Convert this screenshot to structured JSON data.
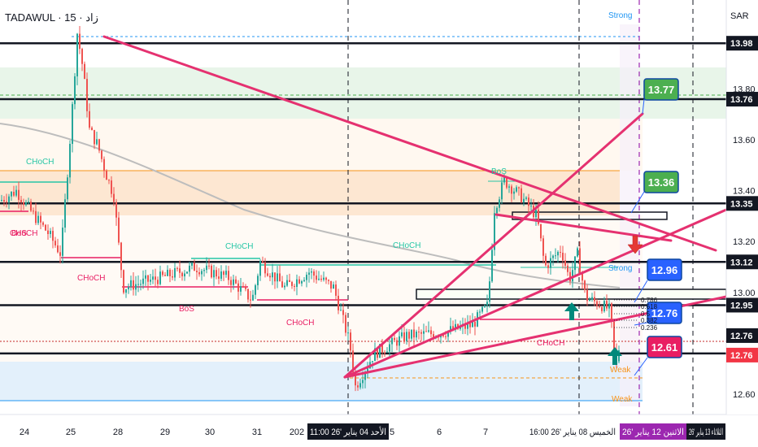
{
  "header": {
    "symbol_label": "TADAWUL · 15 · زاد",
    "currency": "SAR"
  },
  "price_axis": {
    "ticks": [
      "13.80",
      "13.60",
      "13.40",
      "13.20",
      "13.00",
      "12.60"
    ],
    "badges": [
      {
        "text": "13.98",
        "style": "dark"
      },
      {
        "text": "13.76",
        "style": "dark"
      },
      {
        "text": "13.35",
        "style": "dark"
      },
      {
        "text": "13.12",
        "style": "dark"
      },
      {
        "text": "12.95",
        "style": "dark"
      },
      {
        "text": "12.76",
        "style": "dark"
      },
      {
        "text": "12.76",
        "style": "red"
      }
    ]
  },
  "time_axis": {
    "labels": [
      "24",
      "25",
      "28",
      "29",
      "30",
      "31",
      "202",
      "5",
      "6",
      "7"
    ],
    "highlights": [
      {
        "text": "الأحد 04 يناير '26  11:00",
        "style": "dark"
      },
      {
        "text": "الخميس 08 يناير '26  16:00",
        "style": "light"
      },
      {
        "text": "الاثنين 12 يناير '26",
        "style": "purple"
      },
      {
        "text": "الثلاثاء 13 يناير '26",
        "style": "dark"
      }
    ]
  },
  "callouts": [
    {
      "text": "13.77",
      "color": "#4caf50"
    },
    {
      "text": "13.36",
      "color": "#4caf50"
    },
    {
      "text": "12.96",
      "color": "#2962ff"
    },
    {
      "text": "12.76",
      "color": "#2962ff"
    },
    {
      "text": "12.61",
      "color": "#e91e63"
    }
  ],
  "annotations": {
    "choch_labels": [
      "CHoCH",
      "CHoCH",
      "CHoCH",
      "CHoCH",
      "CHoCH",
      "CHoCH",
      "CHoCH"
    ],
    "bos_labels": [
      "BoS",
      "BoS",
      "BoS"
    ],
    "strong_labels": [
      "Strong",
      "Strong"
    ],
    "weak_labels": [
      "Weak",
      "Weak"
    ],
    "fib_levels": [
      "0.786",
      "0.618",
      "0.5",
      "0.382",
      "0.236"
    ]
  },
  "colors": {
    "trendline": "#e53170",
    "choch_green": "#26c6a6",
    "choch_red": "#e91e63",
    "strong": "#2196f3",
    "weak": "#f7931a",
    "zone_green": "#e8f5e9",
    "zone_orange": "#fde7d2",
    "zone_blue": "#e3f0fb"
  },
  "chart_data": {
    "type": "candlestick",
    "symbol": "TADAWUL · 15 · زاد",
    "currency": "SAR",
    "y_range": [
      12.52,
      14.15
    ],
    "y_ticks": [
      13.8,
      13.6,
      13.4,
      13.2,
      13.0,
      12.6
    ],
    "key_levels": [
      13.98,
      13.76,
      13.35,
      13.12,
      12.95,
      12.76
    ],
    "projection_targets": [
      13.77,
      13.36,
      12.96,
      12.76,
      12.61
    ],
    "x_categories": [
      "24",
      "25",
      "28",
      "29",
      "30",
      "31",
      "202",
      "5",
      "6",
      "7"
    ],
    "price_path": [
      [
        0,
        13.36
      ],
      [
        20,
        13.4
      ],
      [
        40,
        13.31
      ],
      [
        60,
        13.23
      ],
      [
        75,
        13.15
      ],
      [
        88,
        13.68
      ],
      [
        95,
        14.02
      ],
      [
        102,
        13.88
      ],
      [
        110,
        13.64
      ],
      [
        120,
        13.58
      ],
      [
        130,
        13.47
      ],
      [
        140,
        13.38
      ],
      [
        148,
        13.12
      ],
      [
        152,
        13.02
      ],
      [
        200,
        13.06
      ],
      [
        240,
        13.1
      ],
      [
        280,
        13.06
      ],
      [
        310,
        12.97
      ],
      [
        320,
        13.12
      ],
      [
        350,
        13.02
      ],
      [
        380,
        13.08
      ],
      [
        410,
        13.02
      ],
      [
        430,
        12.8
      ],
      [
        437,
        12.63
      ],
      [
        460,
        12.76
      ],
      [
        500,
        12.83
      ],
      [
        540,
        12.84
      ],
      [
        580,
        12.87
      ],
      [
        600,
        12.95
      ],
      [
        608,
        13.33
      ],
      [
        620,
        13.44
      ],
      [
        640,
        13.38
      ],
      [
        660,
        13.3
      ],
      [
        670,
        13.1
      ],
      [
        690,
        13.17
      ],
      [
        700,
        13.05
      ],
      [
        710,
        13.15
      ],
      [
        720,
        12.98
      ],
      [
        740,
        12.95
      ],
      [
        750,
        12.93
      ],
      [
        757,
        12.7
      ],
      [
        762,
        12.8
      ]
    ]
  }
}
